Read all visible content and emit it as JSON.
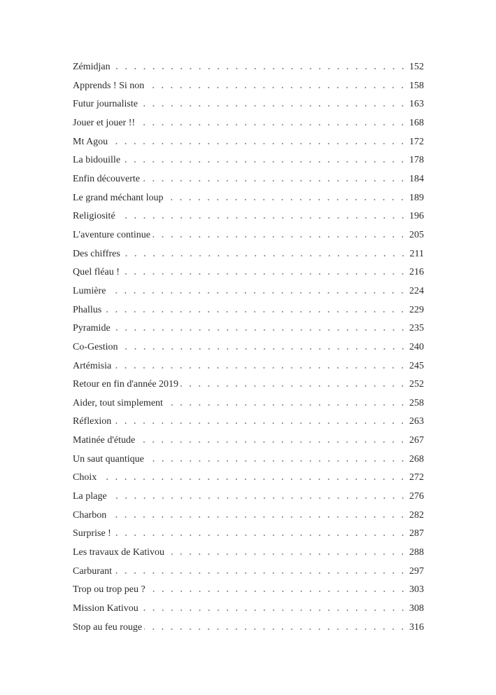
{
  "toc": [
    {
      "title": "Zémidjan",
      "page": "152"
    },
    {
      "title": "Apprends ! Si non",
      "page": "158"
    },
    {
      "title": "Futur journaliste",
      "page": "163"
    },
    {
      "title": "Jouer et jouer !!",
      "page": "168"
    },
    {
      "title": "Mt Agou",
      "page": "172"
    },
    {
      "title": "La bidouille",
      "page": "178"
    },
    {
      "title": "Enfin découverte",
      "page": "184"
    },
    {
      "title": "Le grand méchant loup",
      "page": "189"
    },
    {
      "title": "Religiosité",
      "page": "196"
    },
    {
      "title": "L'aventure continue",
      "page": "205"
    },
    {
      "title": "Des chiffres",
      "page": "211"
    },
    {
      "title": "Quel fléau !",
      "page": "216"
    },
    {
      "title": "Lumière",
      "page": "224"
    },
    {
      "title": "Phallus",
      "page": "229"
    },
    {
      "title": "Pyramide",
      "page": "235"
    },
    {
      "title": "Co-Gestion",
      "page": "240"
    },
    {
      "title": "Artémisia",
      "page": "245"
    },
    {
      "title": "Retour en fin d'année 2019",
      "page": "252"
    },
    {
      "title": "Aider, tout simplement",
      "page": "258"
    },
    {
      "title": "Réflexion",
      "page": "263"
    },
    {
      "title": "Matinée d'étude",
      "page": "267"
    },
    {
      "title": "Un saut quantique",
      "page": "268"
    },
    {
      "title": "Choix",
      "page": "272"
    },
    {
      "title": "La plage",
      "page": "276"
    },
    {
      "title": "Charbon",
      "page": "282"
    },
    {
      "title": "Surprise !",
      "page": "287"
    },
    {
      "title": "Les travaux de Kativou",
      "page": "288"
    },
    {
      "title": "Carburant",
      "page": "297"
    },
    {
      "title": "Trop ou trop peu ?",
      "page": "303"
    },
    {
      "title": "Mission Kativou",
      "page": "308"
    },
    {
      "title": "Stop au feu rouge",
      "page": "316"
    }
  ]
}
